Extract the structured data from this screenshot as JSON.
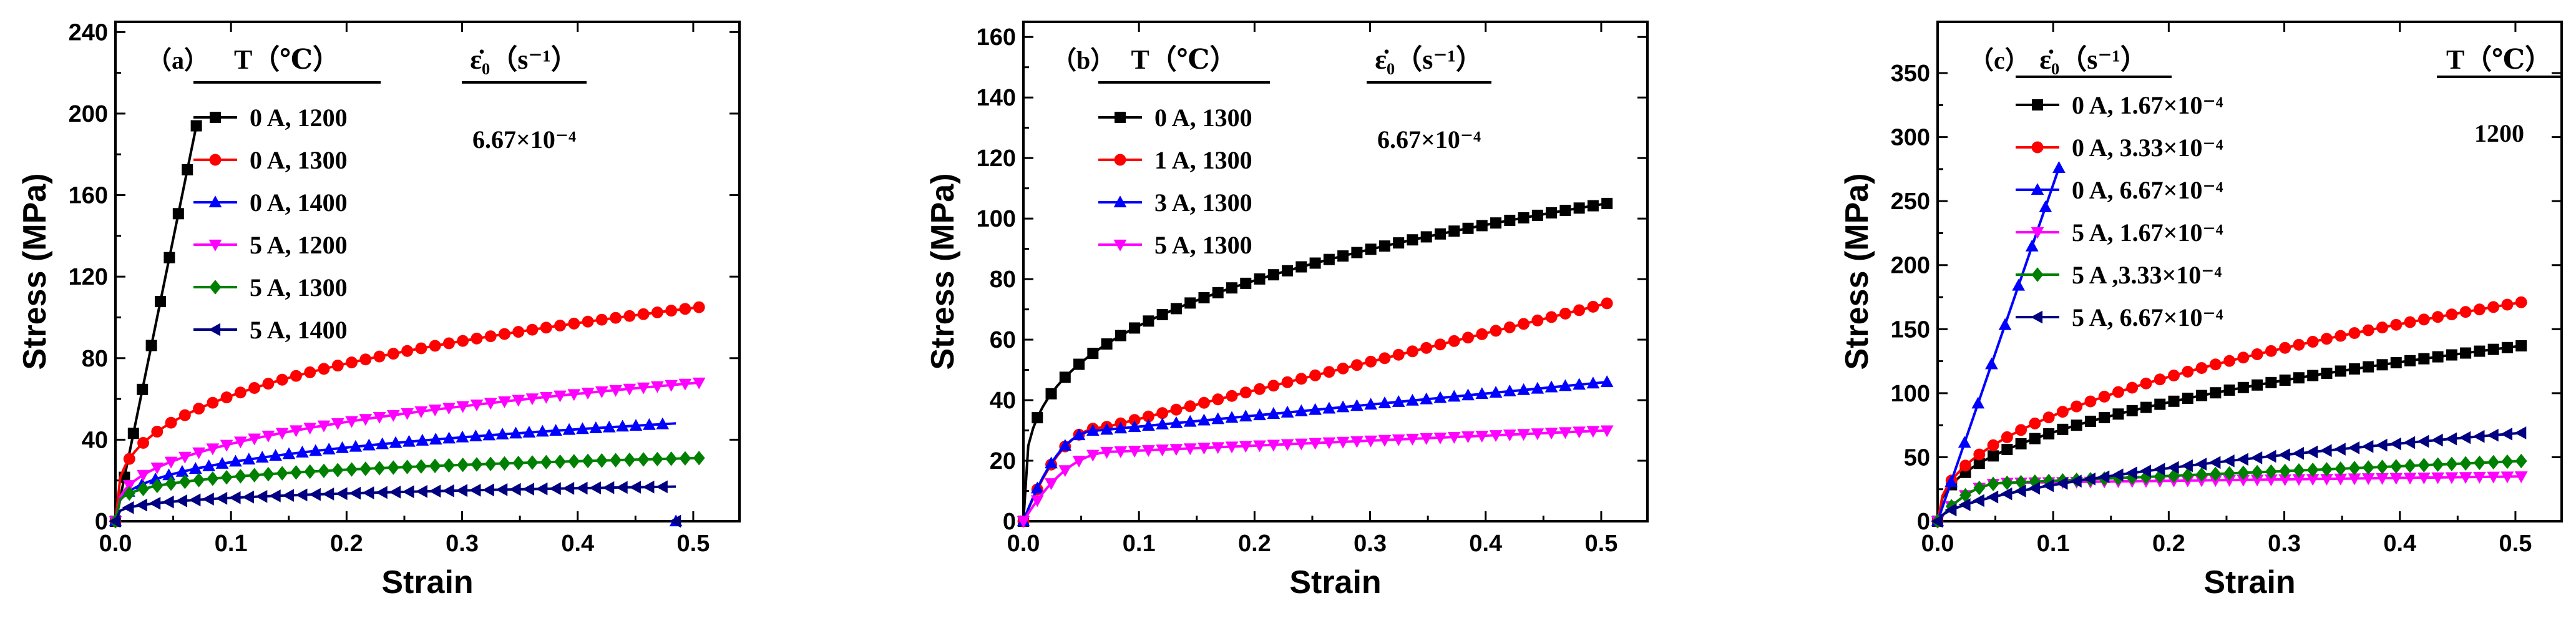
{
  "chart_data": [
    {
      "type": "line",
      "panel_label": "（a）",
      "xlabel": "Strain",
      "ylabel": "Stress (MPa)",
      "xlim": [
        0,
        0.54
      ],
      "ylim": [
        0,
        245
      ],
      "xticks": [
        0.0,
        0.1,
        0.2,
        0.3,
        0.4,
        0.5
      ],
      "xtick_labels": [
        "0.0",
        "0.1",
        "0.2",
        "0.3",
        "0.4",
        "0.5"
      ],
      "yticks": [
        0,
        40,
        80,
        120,
        160,
        200,
        240
      ],
      "ytick_labels": [
        "0",
        "40",
        "80",
        "120",
        "160",
        "200",
        "240"
      ],
      "legend_header_left": "T（℃）",
      "legend_header_right": "ε̇₀（s⁻¹）",
      "legend_note": "6.67×10⁻⁴",
      "series": [
        {
          "name": "0 A, 1200",
          "color": "#000000",
          "marker": "square",
          "shape": "linear",
          "max_strain": 0.07,
          "plateau": 194
        },
        {
          "name": "0 A, 1300",
          "color": "#ff0000",
          "marker": "circle",
          "shape": "power",
          "max_strain": 0.505,
          "plateau": 105,
          "n": 0.33
        },
        {
          "name": "0 A, 1400",
          "color": "#0000ff",
          "marker": "triangle-up",
          "shape": "power",
          "max_strain": 0.485,
          "plateau": 48,
          "n": 0.32
        },
        {
          "name": "5 A, 1200",
          "color": "#ff00ff",
          "marker": "triangle-down",
          "shape": "power",
          "max_strain": 0.505,
          "plateau": 68,
          "n": 0.36
        },
        {
          "name": "5 A, 1300",
          "color": "#008000",
          "marker": "diamond",
          "shape": "power",
          "max_strain": 0.505,
          "plateau": 31,
          "n": 0.22
        },
        {
          "name": "5 A, 1400",
          "color": "#000080",
          "marker": "triangle-left",
          "shape": "power",
          "max_strain": 0.485,
          "plateau": 17,
          "n": 0.25
        }
      ]
    },
    {
      "type": "line",
      "panel_label": "（b）",
      "xlabel": "Strain",
      "ylabel": "Stress (MPa)",
      "xlim": [
        0,
        0.54
      ],
      "ylim": [
        0,
        165
      ],
      "xticks": [
        0.0,
        0.1,
        0.2,
        0.3,
        0.4,
        0.5
      ],
      "xtick_labels": [
        "0.0",
        "0.1",
        "0.2",
        "0.3",
        "0.4",
        "0.5"
      ],
      "yticks": [
        0,
        20,
        40,
        60,
        80,
        100,
        120,
        140,
        160
      ],
      "ytick_labels": [
        "0",
        "20",
        "40",
        "60",
        "80",
        "100",
        "120",
        "140",
        "160"
      ],
      "legend_header_left": "T（℃）",
      "legend_header_right": "ε̇₀（s⁻¹）",
      "legend_note": "6.67×10⁻⁴",
      "series": [
        {
          "name": "0 A, 1300",
          "color": "#000000",
          "marker": "square",
          "shape": "power",
          "max_strain": 0.505,
          "plateau": 105,
          "n": 0.3
        },
        {
          "name": "1 A, 1300",
          "color": "#ff0000",
          "marker": "circle",
          "shape": "mixed",
          "max_strain": 0.505,
          "plateau": 72,
          "base": 31,
          "knee": 0.07
        },
        {
          "name": "3 A, 1300",
          "color": "#0000ff",
          "marker": "triangle-up",
          "shape": "mixed",
          "max_strain": 0.505,
          "plateau": 46,
          "base": 30,
          "knee": 0.065
        },
        {
          "name": "5 A, 1300",
          "color": "#ff00ff",
          "marker": "triangle-down",
          "shape": "mixed",
          "max_strain": 0.505,
          "plateau": 30,
          "base": 23,
          "knee": 0.08
        }
      ]
    },
    {
      "type": "line",
      "panel_label": "（c）",
      "xlabel": "Strain",
      "ylabel": "Stress (MPa)",
      "xlim": [
        0,
        0.54
      ],
      "ylim": [
        0,
        390
      ],
      "xticks": [
        0.0,
        0.1,
        0.2,
        0.3,
        0.4,
        0.5
      ],
      "xtick_labels": [
        "0.0",
        "0.1",
        "0.2",
        "0.3",
        "0.4",
        "0.5"
      ],
      "yticks": [
        0,
        50,
        100,
        150,
        200,
        250,
        300,
        350
      ],
      "ytick_labels": [
        "0",
        "50",
        "100",
        "150",
        "200",
        "250",
        "300",
        "350"
      ],
      "legend_header_left": "ε̇₀（s⁻¹）",
      "legend_header_right": "T（℃）",
      "legend_note": "1200",
      "series": [
        {
          "name": "0 A, 1.67×10⁻⁴",
          "color": "#000000",
          "marker": "square",
          "shape": "power",
          "max_strain": 0.505,
          "plateau": 137,
          "n": 0.42
        },
        {
          "name": "0 A, 3.33×10⁻⁴",
          "color": "#ff0000",
          "marker": "circle",
          "shape": "power",
          "max_strain": 0.505,
          "plateau": 171,
          "n": 0.45
        },
        {
          "name": "0 A, 6.67×10⁻⁴",
          "color": "#0000ff",
          "marker": "triangle-up",
          "shape": "linear",
          "max_strain": 0.105,
          "plateau": 276
        },
        {
          "name": "5 A, 1.67×10⁻⁴",
          "color": "#ff00ff",
          "marker": "triangle-down",
          "shape": "mixed",
          "max_strain": 0.505,
          "plateau": 35,
          "base": 30,
          "knee": 0.06
        },
        {
          "name": "5 A ,3.33×10⁻⁴",
          "color": "#008000",
          "marker": "diamond",
          "shape": "mixed",
          "max_strain": 0.505,
          "plateau": 47,
          "base": 30,
          "knee": 0.06
        },
        {
          "name": "5 A, 6.67×10⁻⁴",
          "color": "#000080",
          "marker": "triangle-left",
          "shape": "power",
          "max_strain": 0.505,
          "plateau": 69,
          "n": 0.55
        }
      ]
    }
  ]
}
